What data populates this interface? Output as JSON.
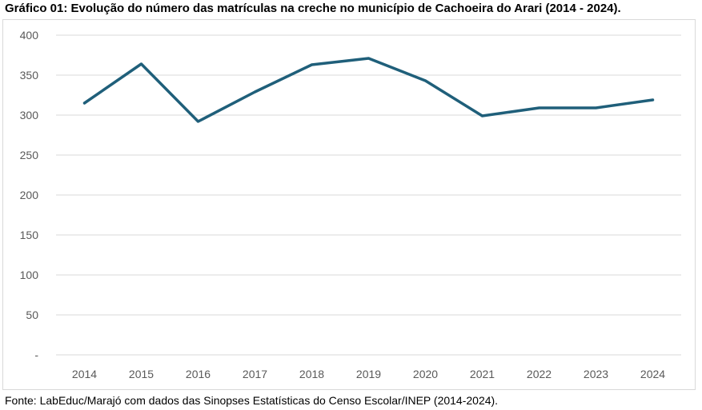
{
  "chart_data": {
    "type": "line",
    "title": "Gráfico 01: Evolução do número das matrículas na creche no município de Cachoeira do Arari (2014 - 2024).",
    "categories": [
      "2014",
      "2015",
      "2016",
      "2017",
      "2018",
      "2019",
      "2020",
      "2021",
      "2022",
      "2023",
      "2024"
    ],
    "series": [
      {
        "name": "Matrículas na creche",
        "values": [
          315,
          364,
          292,
          329,
          363,
          371,
          343,
          299,
          309,
          309,
          319
        ],
        "color": "#1f5f7a"
      }
    ],
    "y_ticks": [
      {
        "value": 0,
        "label": "-"
      },
      {
        "value": 50,
        "label": "50"
      },
      {
        "value": 100,
        "label": "100"
      },
      {
        "value": 150,
        "label": "150"
      },
      {
        "value": 200,
        "label": "200"
      },
      {
        "value": 250,
        "label": "250"
      },
      {
        "value": 300,
        "label": "300"
      },
      {
        "value": 350,
        "label": "350"
      },
      {
        "value": 400,
        "label": "400"
      }
    ],
    "ylim": [
      0,
      400
    ],
    "xlabel": "",
    "ylabel": "",
    "grid": true,
    "legend": "none"
  },
  "source": "Fonte: LabEduc/Marajó com dados das Sinopses Estatísticas do Censo Escolar/INEP (2014-2024)."
}
